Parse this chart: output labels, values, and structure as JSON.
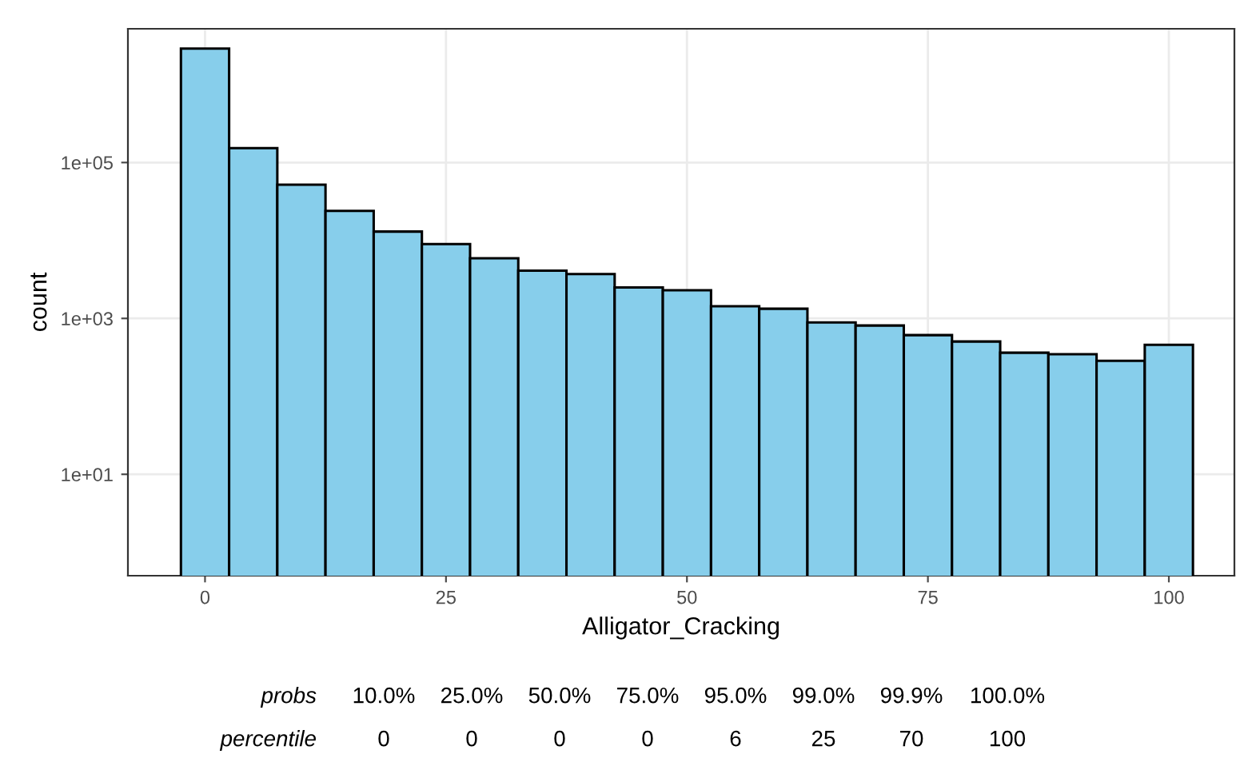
{
  "chart_data": {
    "type": "histogram",
    "xlabel": "Alligator_Cracking",
    "ylabel": "count",
    "color": "#87ceeb",
    "bins": [
      -2.5,
      2.5,
      7.5,
      12.5,
      17.5,
      22.5,
      27.5,
      32.5,
      37.5,
      42.5,
      47.5,
      52.5,
      57.5,
      62.5,
      67.5,
      72.5,
      77.5,
      82.5,
      87.5,
      92.5,
      97.5,
      102.5
    ],
    "values": [
      2900000,
      153000,
      52000,
      24000,
      13000,
      9000,
      5900,
      4100,
      3700,
      2500,
      2300,
      1430,
      1330,
      890,
      810,
      610,
      505,
      363,
      347,
      286,
      459
    ],
    "log": "y",
    "xlim": [
      -8,
      106.8
    ],
    "ylim": [
      0.5,
      5200000
    ],
    "xticks": [
      0,
      25,
      50,
      75,
      100
    ],
    "yticks": [
      {
        "value": 10,
        "label": "1e+01"
      },
      {
        "value": 1000,
        "label": "1e+03"
      },
      {
        "value": 100000,
        "label": "1e+05"
      }
    ],
    "grid": true,
    "annotations": [
      "probs",
      "10.0%",
      "25.0%",
      "50.0%",
      "75.0%",
      "95.0%",
      "99.0%",
      "99.9%",
      "100.0%",
      "percentile",
      "0",
      "0",
      "0",
      "0",
      "6",
      "25",
      "70",
      "100"
    ]
  }
}
